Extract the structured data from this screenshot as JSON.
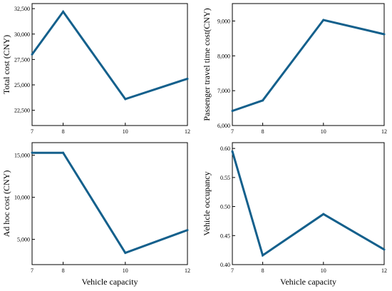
{
  "line_color": "#14608c",
  "chart_data": [
    {
      "type": "line",
      "x": [
        7,
        8,
        10,
        12
      ],
      "values": [
        28000,
        32200,
        23600,
        25600
      ],
      "xlabel": "",
      "ylabel": "Total cost (CNY)",
      "xlim": [
        7,
        12
      ],
      "ylim": [
        21000,
        33000
      ],
      "xticks": [
        7,
        8,
        10,
        12
      ],
      "xtick_labels": [
        "7",
        "8",
        "10",
        "12"
      ],
      "yticks": [
        22500,
        25000,
        27500,
        30000,
        32500
      ],
      "ytick_labels": [
        "22,500",
        "25,000",
        "27,500",
        "30,000",
        "32,500"
      ],
      "grid": false
    },
    {
      "type": "line",
      "x": [
        7,
        8,
        10,
        12
      ],
      "values": [
        6420,
        6720,
        9030,
        8620
      ],
      "xlabel": "",
      "ylabel": "Passenger travel time cost(CNY)",
      "xlim": [
        7,
        12
      ],
      "ylim": [
        6000,
        9500
      ],
      "xticks": [
        7,
        8,
        10,
        12
      ],
      "xtick_labels": [
        "7",
        "8",
        "10",
        "12"
      ],
      "yticks": [
        6000,
        7000,
        8000,
        9000
      ],
      "ytick_labels": [
        "6,000",
        "7,000",
        "8,000",
        "9,000"
      ],
      "grid": false
    },
    {
      "type": "line",
      "x": [
        7,
        8,
        10,
        12
      ],
      "values": [
        15300,
        15300,
        3400,
        6100
      ],
      "xlabel": "Vehicle capacity",
      "ylabel": "Ad hoc cost (CNY)",
      "xlim": [
        7,
        12
      ],
      "ylim": [
        2000,
        16500
      ],
      "xticks": [
        7,
        8,
        10,
        12
      ],
      "xtick_labels": [
        "7",
        "8",
        "10",
        "12"
      ],
      "yticks": [
        5000,
        10000,
        15000
      ],
      "ytick_labels": [
        "5,000",
        "10,000",
        "15,000"
      ],
      "grid": false
    },
    {
      "type": "line",
      "x": [
        7,
        8,
        10,
        12
      ],
      "values": [
        0.595,
        0.416,
        0.487,
        0.426
      ],
      "xlabel": "Vehicle capacity",
      "ylabel": "Vehicle occupancy",
      "xlim": [
        7,
        12
      ],
      "ylim": [
        0.4,
        0.61
      ],
      "xticks": [
        7,
        8,
        10,
        12
      ],
      "xtick_labels": [
        "7",
        "8",
        "10",
        "12"
      ],
      "yticks": [
        0.4,
        0.45,
        0.5,
        0.55,
        0.6
      ],
      "ytick_labels": [
        "0.40",
        "0.45",
        "0.50",
        "0.55",
        "0.60"
      ],
      "grid": false
    }
  ]
}
